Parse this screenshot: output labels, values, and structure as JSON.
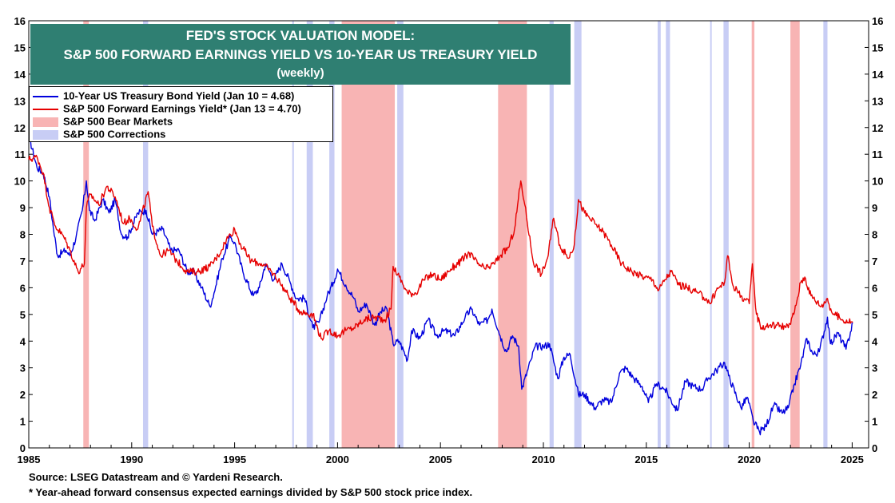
{
  "chart_data": {
    "type": "line",
    "title": "FED'S STOCK VALUATION MODEL:",
    "subtitle": "S&P 500 FORWARD EARNINGS YIELD VS 10-YEAR US TREASURY YIELD",
    "subtitle2": "(weekly)",
    "x_ticks": [
      1985,
      1990,
      1995,
      2000,
      2005,
      2010,
      2015,
      2020,
      2025
    ],
    "y_ticks": [
      0,
      1,
      2,
      3,
      4,
      5,
      6,
      7,
      8,
      9,
      10,
      11,
      12,
      13,
      14,
      15,
      16
    ],
    "xlim": [
      1985,
      2025.8
    ],
    "ylim": [
      0,
      16
    ],
    "legend": {
      "treasury": "10-Year US Treasury Bond Yield (Jan 10 = 4.68)",
      "earnings": "S&P 500 Forward Earnings Yield* (Jan 13 = 4.70)",
      "bear": "S&P 500 Bear Markets",
      "corrections": "S&P 500 Corrections"
    },
    "bear_markets": [
      [
        1987.65,
        1987.92
      ],
      [
        2000.2,
        2002.78
      ],
      [
        2007.8,
        2009.2
      ],
      [
        2020.12,
        2020.25
      ],
      [
        2022.0,
        2022.45
      ]
    ],
    "corrections": [
      [
        1990.55,
        1990.8
      ],
      [
        1997.8,
        1997.88
      ],
      [
        1998.5,
        1998.8
      ],
      [
        1999.6,
        1999.85
      ],
      [
        2002.9,
        2003.2
      ],
      [
        2010.3,
        2010.5
      ],
      [
        2011.5,
        2011.85
      ],
      [
        2015.55,
        2015.7
      ],
      [
        2015.95,
        2016.15
      ],
      [
        2018.1,
        2018.15
      ],
      [
        2018.75,
        2019.0
      ],
      [
        2023.6,
        2023.8
      ]
    ],
    "series": [
      {
        "name": "10-Year US Treasury Bond Yield",
        "color": "#0000dd",
        "points": [
          [
            1985.0,
            11.7
          ],
          [
            1985.4,
            10.5
          ],
          [
            1985.7,
            10.3
          ],
          [
            1986.0,
            9.4
          ],
          [
            1986.2,
            8.2
          ],
          [
            1986.4,
            7.2
          ],
          [
            1986.8,
            7.4
          ],
          [
            1987.0,
            7.2
          ],
          [
            1987.3,
            7.9
          ],
          [
            1987.6,
            8.9
          ],
          [
            1987.8,
            10.0
          ],
          [
            1987.95,
            8.9
          ],
          [
            1988.2,
            8.5
          ],
          [
            1988.6,
            9.3
          ],
          [
            1988.9,
            8.8
          ],
          [
            1989.2,
            9.3
          ],
          [
            1989.5,
            8.0
          ],
          [
            1989.8,
            7.9
          ],
          [
            1990.3,
            8.8
          ],
          [
            1990.7,
            8.9
          ],
          [
            1991.0,
            8.0
          ],
          [
            1991.5,
            8.2
          ],
          [
            1991.9,
            7.4
          ],
          [
            1992.3,
            7.4
          ],
          [
            1992.7,
            6.6
          ],
          [
            1993.0,
            6.6
          ],
          [
            1993.4,
            6.0
          ],
          [
            1993.8,
            5.3
          ],
          [
            1994.0,
            5.8
          ],
          [
            1994.4,
            7.1
          ],
          [
            1994.8,
            7.9
          ],
          [
            1995.0,
            7.7
          ],
          [
            1995.4,
            6.6
          ],
          [
            1995.9,
            5.7
          ],
          [
            1996.2,
            6.0
          ],
          [
            1996.5,
            6.9
          ],
          [
            1996.9,
            6.3
          ],
          [
            1997.3,
            6.9
          ],
          [
            1997.7,
            6.2
          ],
          [
            1998.0,
            5.6
          ],
          [
            1998.4,
            5.6
          ],
          [
            1998.8,
            4.5
          ],
          [
            1999.1,
            4.7
          ],
          [
            1999.5,
            5.7
          ],
          [
            1999.8,
            6.2
          ],
          [
            2000.0,
            6.7
          ],
          [
            2000.4,
            6.1
          ],
          [
            2000.8,
            5.6
          ],
          [
            2001.0,
            5.1
          ],
          [
            2001.4,
            5.4
          ],
          [
            2001.8,
            4.6
          ],
          [
            2002.1,
            5.1
          ],
          [
            2002.4,
            5.2
          ],
          [
            2002.7,
            3.9
          ],
          [
            2003.0,
            4.0
          ],
          [
            2003.4,
            3.3
          ],
          [
            2003.6,
            4.4
          ],
          [
            2004.0,
            4.1
          ],
          [
            2004.4,
            4.8
          ],
          [
            2004.8,
            4.2
          ],
          [
            2005.2,
            4.4
          ],
          [
            2005.7,
            4.2
          ],
          [
            2006.2,
            4.9
          ],
          [
            2006.5,
            5.2
          ],
          [
            2006.9,
            4.6
          ],
          [
            2007.3,
            4.8
          ],
          [
            2007.5,
            5.2
          ],
          [
            2007.9,
            4.2
          ],
          [
            2008.2,
            3.6
          ],
          [
            2008.5,
            4.2
          ],
          [
            2008.8,
            3.8
          ],
          [
            2008.95,
            2.2
          ],
          [
            2009.4,
            3.3
          ],
          [
            2009.6,
            3.8
          ],
          [
            2010.0,
            3.8
          ],
          [
            2010.3,
            3.9
          ],
          [
            2010.7,
            2.6
          ],
          [
            2011.0,
            3.4
          ],
          [
            2011.3,
            3.5
          ],
          [
            2011.7,
            2.0
          ],
          [
            2012.0,
            2.0
          ],
          [
            2012.5,
            1.5
          ],
          [
            2012.9,
            1.8
          ],
          [
            2013.3,
            1.7
          ],
          [
            2013.7,
            2.8
          ],
          [
            2014.0,
            3.0
          ],
          [
            2014.4,
            2.6
          ],
          [
            2014.8,
            2.3
          ],
          [
            2015.1,
            1.7
          ],
          [
            2015.5,
            2.4
          ],
          [
            2015.9,
            2.2
          ],
          [
            2016.5,
            1.4
          ],
          [
            2016.9,
            2.5
          ],
          [
            2017.3,
            2.3
          ],
          [
            2017.7,
            2.2
          ],
          [
            2018.0,
            2.6
          ],
          [
            2018.4,
            2.9
          ],
          [
            2018.8,
            3.2
          ],
          [
            2019.0,
            2.7
          ],
          [
            2019.6,
            1.5
          ],
          [
            2019.9,
            1.9
          ],
          [
            2020.2,
            1.0
          ],
          [
            2020.5,
            0.6
          ],
          [
            2020.8,
            0.8
          ],
          [
            2021.2,
            1.6
          ],
          [
            2021.6,
            1.3
          ],
          [
            2021.9,
            1.5
          ],
          [
            2022.2,
            2.4
          ],
          [
            2022.5,
            3.1
          ],
          [
            2022.8,
            4.1
          ],
          [
            2023.1,
            3.5
          ],
          [
            2023.4,
            3.6
          ],
          [
            2023.8,
            4.9
          ],
          [
            2023.95,
            3.9
          ],
          [
            2024.3,
            4.3
          ],
          [
            2024.7,
            3.7
          ],
          [
            2025.03,
            4.68
          ]
        ]
      },
      {
        "name": "S&P 500 Forward Earnings Yield*",
        "color": "#e60000",
        "points": [
          [
            1985.0,
            10.8
          ],
          [
            1985.4,
            10.9
          ],
          [
            1985.7,
            10.3
          ],
          [
            1986.0,
            9.0
          ],
          [
            1986.3,
            8.3
          ],
          [
            1986.7,
            7.9
          ],
          [
            1987.0,
            7.4
          ],
          [
            1987.4,
            6.6
          ],
          [
            1987.7,
            6.9
          ],
          [
            1987.8,
            9.0
          ],
          [
            1988.0,
            9.5
          ],
          [
            1988.4,
            9.1
          ],
          [
            1988.8,
            9.8
          ],
          [
            1989.2,
            9.4
          ],
          [
            1989.6,
            8.4
          ],
          [
            1989.9,
            8.6
          ],
          [
            1990.3,
            8.2
          ],
          [
            1990.8,
            9.6
          ],
          [
            1991.0,
            8.3
          ],
          [
            1991.4,
            7.2
          ],
          [
            1991.8,
            7.4
          ],
          [
            1992.2,
            7.0
          ],
          [
            1992.7,
            6.6
          ],
          [
            1993.2,
            6.6
          ],
          [
            1993.8,
            6.8
          ],
          [
            1994.2,
            7.2
          ],
          [
            1994.6,
            7.8
          ],
          [
            1995.0,
            8.2
          ],
          [
            1995.3,
            7.6
          ],
          [
            1995.8,
            7.0
          ],
          [
            1996.3,
            6.9
          ],
          [
            1996.8,
            6.6
          ],
          [
            1997.2,
            6.2
          ],
          [
            1997.7,
            5.6
          ],
          [
            1998.2,
            5.1
          ],
          [
            1998.8,
            5.0
          ],
          [
            1999.2,
            4.1
          ],
          [
            1999.6,
            4.4
          ],
          [
            2000.0,
            4.2
          ],
          [
            2000.4,
            4.4
          ],
          [
            2000.8,
            4.5
          ],
          [
            2001.3,
            4.8
          ],
          [
            2001.8,
            4.9
          ],
          [
            2002.3,
            4.8
          ],
          [
            2002.6,
            5.2
          ],
          [
            2002.7,
            6.8
          ],
          [
            2003.0,
            6.4
          ],
          [
            2003.4,
            5.8
          ],
          [
            2003.8,
            5.8
          ],
          [
            2004.2,
            6.3
          ],
          [
            2004.6,
            6.5
          ],
          [
            2005.0,
            6.3
          ],
          [
            2005.5,
            6.7
          ],
          [
            2006.0,
            7.0
          ],
          [
            2006.4,
            7.3
          ],
          [
            2006.8,
            6.9
          ],
          [
            2007.2,
            6.7
          ],
          [
            2007.6,
            6.9
          ],
          [
            2007.9,
            7.2
          ],
          [
            2008.3,
            7.5
          ],
          [
            2008.6,
            8.2
          ],
          [
            2008.9,
            10.0
          ],
          [
            2009.1,
            9.1
          ],
          [
            2009.5,
            7.0
          ],
          [
            2009.9,
            6.5
          ],
          [
            2010.2,
            7.1
          ],
          [
            2010.5,
            8.6
          ],
          [
            2010.8,
            7.6
          ],
          [
            2011.2,
            7.1
          ],
          [
            2011.5,
            7.6
          ],
          [
            2011.7,
            9.3
          ],
          [
            2012.0,
            8.8
          ],
          [
            2012.5,
            8.4
          ],
          [
            2012.9,
            8.1
          ],
          [
            2013.3,
            7.6
          ],
          [
            2013.8,
            6.9
          ],
          [
            2014.3,
            6.6
          ],
          [
            2014.9,
            6.4
          ],
          [
            2015.3,
            6.3
          ],
          [
            2015.6,
            5.9
          ],
          [
            2015.9,
            6.3
          ],
          [
            2016.2,
            6.6
          ],
          [
            2016.6,
            6.1
          ],
          [
            2017.0,
            6.0
          ],
          [
            2017.5,
            5.8
          ],
          [
            2017.9,
            5.6
          ],
          [
            2018.1,
            5.4
          ],
          [
            2018.4,
            5.9
          ],
          [
            2018.8,
            6.2
          ],
          [
            2018.95,
            7.2
          ],
          [
            2019.2,
            6.1
          ],
          [
            2019.6,
            5.7
          ],
          [
            2020.0,
            5.4
          ],
          [
            2020.15,
            6.9
          ],
          [
            2020.35,
            5.0
          ],
          [
            2020.6,
            4.5
          ],
          [
            2021.0,
            4.6
          ],
          [
            2021.5,
            4.6
          ],
          [
            2021.9,
            4.5
          ],
          [
            2022.2,
            5.1
          ],
          [
            2022.5,
            6.2
          ],
          [
            2022.7,
            6.4
          ],
          [
            2023.0,
            5.7
          ],
          [
            2023.5,
            5.3
          ],
          [
            2023.8,
            5.6
          ],
          [
            2024.0,
            5.1
          ],
          [
            2024.5,
            4.8
          ],
          [
            2025.03,
            4.7
          ]
        ]
      }
    ]
  },
  "source_note": "Source: LSEG Datastream and © Yardeni Research.",
  "footnote": "* Year-ahead forward consensus expected earnings divided by S&P 500 stock price index."
}
